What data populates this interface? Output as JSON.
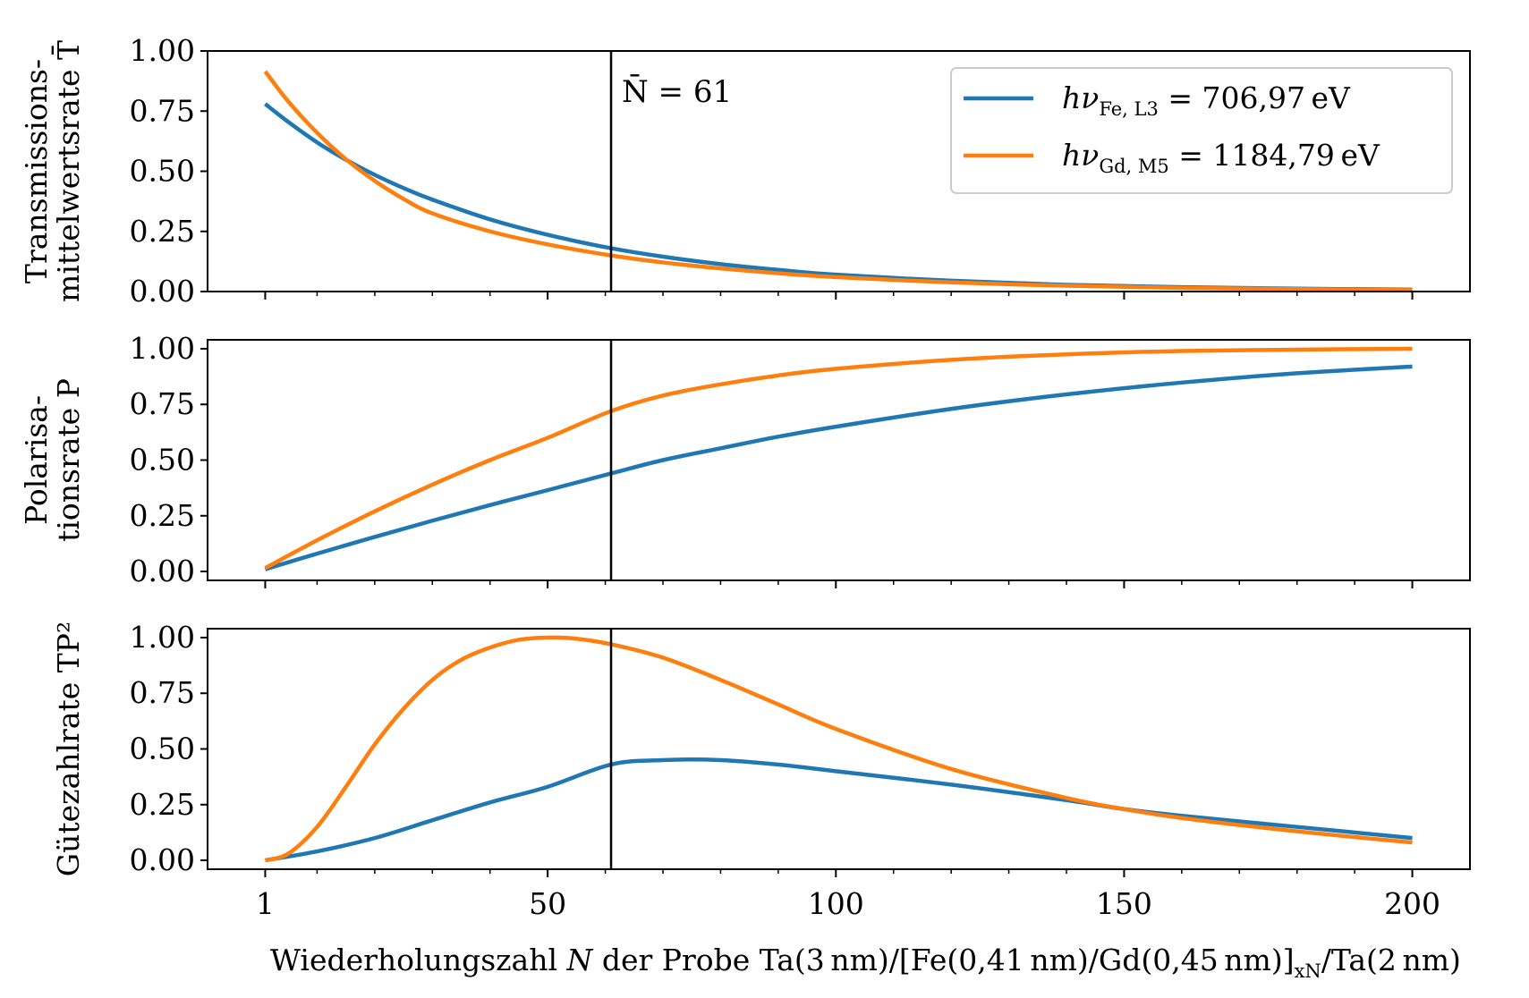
{
  "chart_data": {
    "type": "line",
    "shared_x": {
      "label_parts": [
        "Wiederholungszahl ",
        "N",
        " der Probe Ta(3 nm)/[Fe(0,41 nm)/Gd(0,45 nm)]",
        "xN",
        "/Ta(2 nm)"
      ],
      "xlim": [
        -9,
        210
      ],
      "ticks": [
        1,
        50,
        100,
        150,
        200
      ],
      "tick_labels": [
        "1",
        "50",
        "100",
        "150",
        "200"
      ],
      "minor_ticks": [
        10,
        20,
        30,
        40,
        60,
        70,
        80,
        90,
        110,
        120,
        130,
        140,
        160,
        170,
        180,
        190
      ]
    },
    "vline": {
      "x": 61,
      "label": "N̄ = 61"
    },
    "legend": {
      "placement": "top-right of first panel",
      "entries": [
        {
          "series": "fe",
          "label": "hν",
          "sub": "Fe, L3",
          "value": " = 706,97 eV"
        },
        {
          "series": "gd",
          "label": "hν",
          "sub": "Gd, M5",
          "value": " = 1184,79 eV"
        }
      ]
    },
    "colors": {
      "fe": "#1f77b4",
      "gd": "#ff7f0e",
      "vline": "#000000"
    },
    "panels": [
      {
        "ylabel_lines": [
          "Transmissions-",
          "mittelwertsrate T̄"
        ],
        "ylim": [
          0,
          1
        ],
        "yticks": [
          0,
          0.25,
          0.5,
          0.75,
          1.0
        ],
        "ytick_labels": [
          "0.00",
          "0.25",
          "0.50",
          "0.75",
          "1.00"
        ],
        "series": [
          {
            "key": "fe",
            "x": [
              1,
              5,
              10,
              15,
              20,
              25,
              30,
              40,
              50,
              61,
              70,
              80,
              90,
              100,
              120,
              140,
              160,
              180,
              200
            ],
            "y": [
              0.78,
              0.705,
              0.62,
              0.548,
              0.485,
              0.43,
              0.382,
              0.3,
              0.236,
              0.18,
              0.145,
              0.114,
              0.09,
              0.07,
              0.045,
              0.028,
              0.018,
              0.012,
              0.008
            ]
          },
          {
            "key": "gd",
            "x": [
              1,
              5,
              10,
              15,
              20,
              25,
              30,
              40,
              50,
              61,
              70,
              80,
              90,
              100,
              120,
              140,
              160,
              180,
              200
            ],
            "y": [
              0.915,
              0.79,
              0.66,
              0.55,
              0.46,
              0.385,
              0.325,
              0.25,
              0.196,
              0.15,
              0.121,
              0.096,
              0.076,
              0.06,
              0.038,
              0.024,
              0.015,
              0.01,
              0.006
            ]
          }
        ]
      },
      {
        "ylabel_lines": [
          "Polarisa-",
          "tionsrate P"
        ],
        "ylim": [
          -0.04,
          1.04
        ],
        "yticks": [
          0,
          0.25,
          0.5,
          0.75,
          1.0
        ],
        "ytick_labels": [
          "0.00",
          "0.25",
          "0.50",
          "0.75",
          "1.00"
        ],
        "series": [
          {
            "key": "fe",
            "x": [
              1,
              10,
              20,
              30,
              40,
              50,
              61,
              70,
              80,
              90,
              100,
              120,
              140,
              160,
              180,
              200
            ],
            "y": [
              0.01,
              0.08,
              0.155,
              0.228,
              0.298,
              0.365,
              0.44,
              0.5,
              0.553,
              0.605,
              0.65,
              0.73,
              0.795,
              0.848,
              0.89,
              0.92
            ]
          },
          {
            "key": "gd",
            "x": [
              1,
              10,
              20,
              30,
              40,
              50,
              61,
              70,
              80,
              90,
              100,
              120,
              140,
              160,
              180,
              200
            ],
            "y": [
              0.015,
              0.14,
              0.27,
              0.39,
              0.5,
              0.6,
              0.72,
              0.79,
              0.84,
              0.88,
              0.91,
              0.95,
              0.975,
              0.99,
              0.996,
              1.0
            ]
          }
        ]
      },
      {
        "ylabel_lines": [
          "Gütezahlrate TP²"
        ],
        "ylim": [
          -0.04,
          1.04
        ],
        "yticks": [
          0,
          0.25,
          0.5,
          0.75,
          1.0
        ],
        "ytick_labels": [
          "0.00",
          "0.25",
          "0.50",
          "0.75",
          "1.00"
        ],
        "series": [
          {
            "key": "fe",
            "x": [
              1,
              10,
              20,
              30,
              40,
              50,
              61,
              70,
              80,
              90,
              100,
              120,
              140,
              150,
              160,
              180,
              200
            ],
            "y": [
              0.0,
              0.04,
              0.1,
              0.18,
              0.26,
              0.33,
              0.43,
              0.45,
              0.45,
              0.43,
              0.4,
              0.34,
              0.27,
              0.23,
              0.2,
              0.15,
              0.1
            ]
          },
          {
            "key": "gd",
            "x": [
              1,
              5,
              10,
              15,
              20,
              25,
              30,
              35,
              40,
              45,
              50,
              55,
              61,
              70,
              80,
              90,
              100,
              120,
              140,
              150,
              160,
              180,
              200
            ],
            "y": [
              0.0,
              0.03,
              0.15,
              0.33,
              0.52,
              0.68,
              0.81,
              0.9,
              0.955,
              0.99,
              1.0,
              0.995,
              0.97,
              0.91,
              0.81,
              0.7,
              0.59,
              0.41,
              0.28,
              0.23,
              0.19,
              0.13,
              0.08
            ]
          }
        ]
      }
    ]
  }
}
